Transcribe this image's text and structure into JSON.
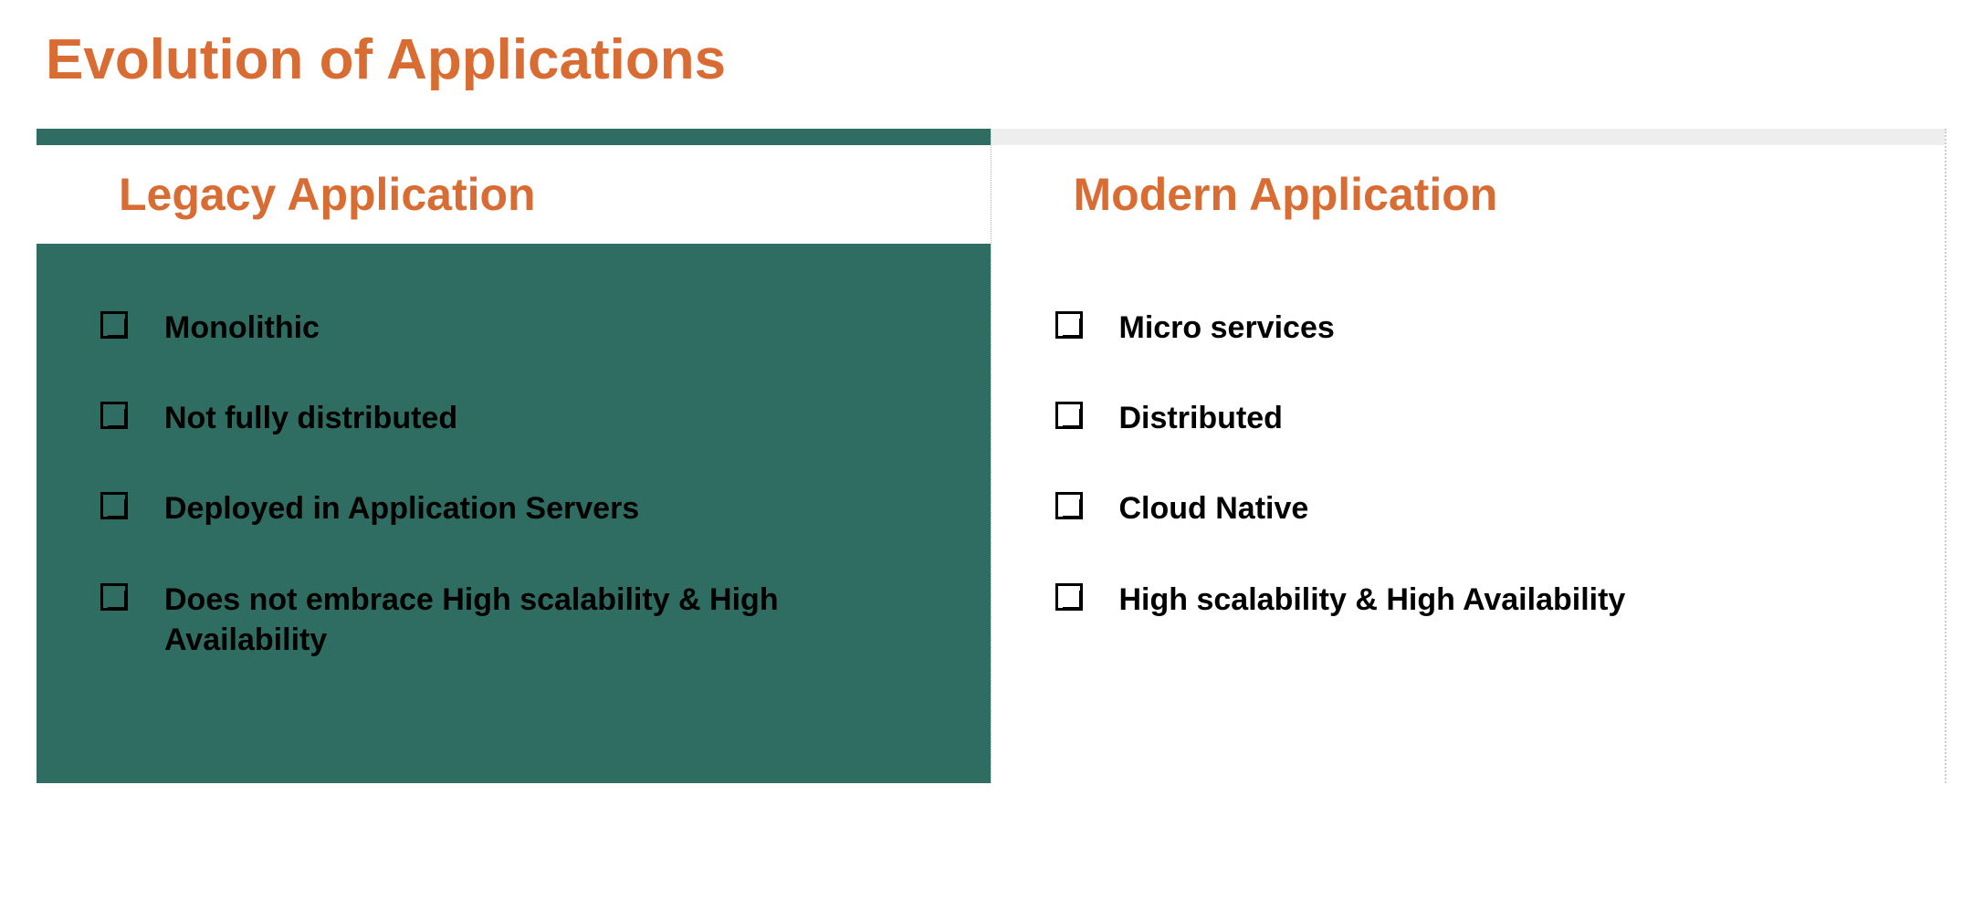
{
  "slide": {
    "title": "Evolution of Applications"
  },
  "colors": {
    "accent": "#d96c33",
    "teal": "#2f6d62",
    "light_gray": "#eeeeee",
    "text": "#000000",
    "background": "#ffffff"
  },
  "columns": {
    "left": {
      "header": "Legacy Application",
      "items": [
        "Monolithic",
        "Not fully distributed",
        "Deployed in Application Servers",
        "Does not embrace High scalability & High Availability"
      ],
      "header_bg": "#ffffff",
      "body_bg": "#2f6d62",
      "top_bar_bg": "#2f6d62"
    },
    "right": {
      "header": "Modern Application",
      "items": [
        "Micro services",
        "Distributed",
        "Cloud Native",
        "High scalability & High Availability"
      ],
      "header_bg": "#ffffff",
      "body_bg": "#ffffff",
      "top_bar_bg": "#eeeeee"
    }
  },
  "typography": {
    "title_fontsize": 62,
    "header_fontsize": 50,
    "item_fontsize": 34,
    "font_family": "Arial"
  }
}
